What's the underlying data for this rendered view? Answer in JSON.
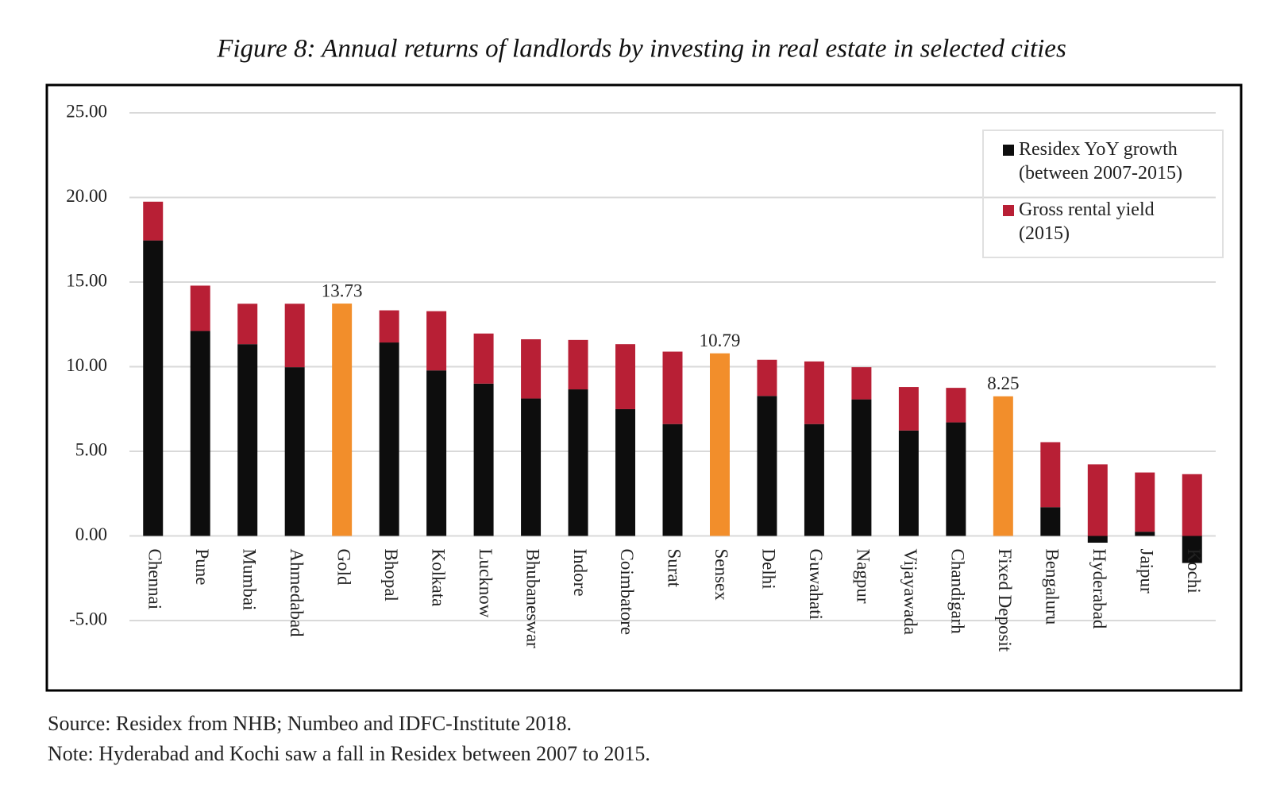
{
  "chart_data": {
    "type": "stacked-bar",
    "title": "Figure 8: Annual returns of landlords by investing in real estate in selected cities",
    "categories": [
      "Chennai",
      "Pune",
      "Mumbai",
      "Ahmedabad",
      "Gold",
      "Bhopal",
      "Kolkata",
      "Lucknow",
      "Bhubaneswar",
      "Indore",
      "Coimbatore",
      "Surat",
      "Sensex",
      "Delhi",
      "Guwahati",
      "Nagpur",
      "Vijayawada",
      "Chandigarh",
      "Fixed Deposit",
      "Bengaluru",
      "Hyderabad",
      "Jaipur",
      "Kochi"
    ],
    "series": [
      {
        "name": "Residex YoY growth (between 2007-2015)",
        "color": "#0d0d0d",
        "values": [
          17.46,
          12.11,
          11.33,
          9.97,
          null,
          11.43,
          9.78,
          9.0,
          8.12,
          8.66,
          7.49,
          6.61,
          null,
          8.27,
          6.61,
          8.07,
          6.23,
          6.71,
          null,
          1.7,
          -0.4,
          0.25,
          -1.6
        ]
      },
      {
        "name": "Gross rental yield (2015)",
        "color": "#b81f35",
        "values": [
          2.29,
          2.68,
          2.39,
          3.75,
          null,
          1.9,
          3.5,
          2.96,
          3.5,
          2.92,
          3.84,
          4.28,
          null,
          2.14,
          3.7,
          1.9,
          2.57,
          2.04,
          null,
          3.84,
          4.23,
          3.5,
          3.65
        ]
      },
      {
        "color": "#f28e2b",
        "values": [
          null,
          null,
          null,
          null,
          13.73,
          null,
          null,
          null,
          null,
          null,
          null,
          null,
          10.79,
          null,
          null,
          null,
          null,
          null,
          8.25,
          null,
          null,
          null,
          null
        ]
      }
    ],
    "ylim": [
      -5,
      25
    ],
    "yticks": [
      {
        "value": -5,
        "label": "-5.00"
      },
      {
        "value": 0,
        "label": "0.00"
      },
      {
        "value": 5,
        "label": "5.00"
      },
      {
        "value": 10,
        "label": "10.00"
      },
      {
        "value": 15,
        "label": "15.00"
      },
      {
        "value": 20,
        "label": "20.00"
      },
      {
        "value": 25,
        "label": "25.00"
      }
    ],
    "grid": true,
    "legend": "top-right",
    "source": "Source: Residex from NHB; Numbeo and IDFC-Institute 2018.",
    "note": "Note: Hyderabad and Kochi saw a fall in Residex between 2007 to 2015."
  }
}
